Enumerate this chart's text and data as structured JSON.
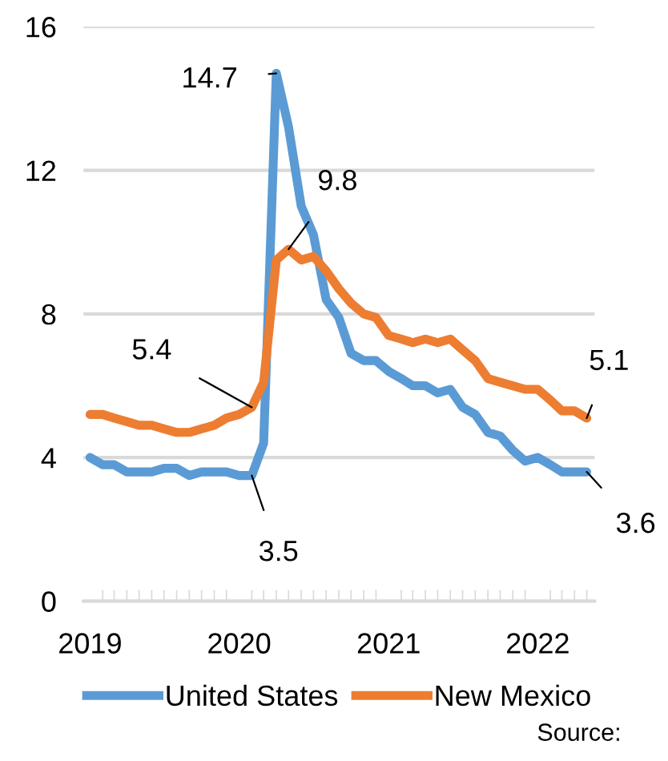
{
  "chart_data": {
    "type": "line",
    "x": [
      "2019-01",
      "2019-02",
      "2019-03",
      "2019-04",
      "2019-05",
      "2019-06",
      "2019-07",
      "2019-08",
      "2019-09",
      "2019-10",
      "2019-11",
      "2019-12",
      "2020-01",
      "2020-02",
      "2020-03",
      "2020-04",
      "2020-05",
      "2020-06",
      "2020-07",
      "2020-08",
      "2020-09",
      "2020-10",
      "2020-11",
      "2020-12",
      "2021-01",
      "2021-02",
      "2021-03",
      "2021-04",
      "2021-05",
      "2021-06",
      "2021-07",
      "2021-08",
      "2021-09",
      "2021-10",
      "2021-11",
      "2021-12",
      "2022-01",
      "2022-02",
      "2022-03",
      "2022-04",
      "2022-05"
    ],
    "series": [
      {
        "name": "United States",
        "color": "#5b9bd5",
        "values": [
          4.0,
          3.8,
          3.8,
          3.6,
          3.6,
          3.6,
          3.7,
          3.7,
          3.5,
          3.6,
          3.6,
          3.6,
          3.5,
          3.5,
          4.4,
          14.7,
          13.2,
          11.0,
          10.2,
          8.4,
          7.9,
          6.9,
          6.7,
          6.7,
          6.4,
          6.2,
          6.0,
          6.0,
          5.8,
          5.9,
          5.4,
          5.2,
          4.7,
          4.6,
          4.2,
          3.9,
          4.0,
          3.8,
          3.6,
          3.6,
          3.6
        ]
      },
      {
        "name": "New Mexico",
        "color": "#ed7d31",
        "values": [
          5.2,
          5.2,
          5.1,
          5.0,
          4.9,
          4.9,
          4.8,
          4.7,
          4.7,
          4.8,
          4.9,
          5.1,
          5.2,
          5.4,
          6.1,
          9.5,
          9.8,
          9.5,
          9.6,
          9.2,
          8.7,
          8.3,
          8.0,
          7.9,
          7.4,
          7.3,
          7.2,
          7.3,
          7.2,
          7.3,
          7.0,
          6.7,
          6.2,
          6.1,
          6.0,
          5.9,
          5.9,
          5.6,
          5.3,
          5.3,
          5.1
        ]
      }
    ],
    "xlim": [
      "2018-12-16",
      "2022-05-20"
    ],
    "xticks": [
      {
        "value": "2019-01",
        "label": "2019"
      },
      {
        "value": "2020-01",
        "label": "2020"
      },
      {
        "value": "2021-01",
        "label": "2021"
      },
      {
        "value": "2022-01",
        "label": "2022"
      }
    ],
    "ylim": [
      0,
      16
    ],
    "yticks": [
      0,
      4,
      8,
      12,
      16
    ],
    "grid": "y",
    "legend": "bottom",
    "marker": "none",
    "line_style": "solid",
    "annotations": [
      {
        "text": "14.7",
        "x": "2020-04",
        "y": 14.7
      },
      {
        "text": "9.8",
        "x": "2020-05",
        "y": 9.8
      },
      {
        "text": "5.4",
        "x": "2020-02",
        "y": 5.4
      },
      {
        "text": "3.5",
        "x": "2020-02",
        "y": 3.5
      },
      {
        "text": "5.1",
        "x": "2022-05",
        "y": 5.1
      },
      {
        "text": "3.6",
        "x": "2022-05",
        "y": 3.6
      },
      "Source:"
    ]
  }
}
